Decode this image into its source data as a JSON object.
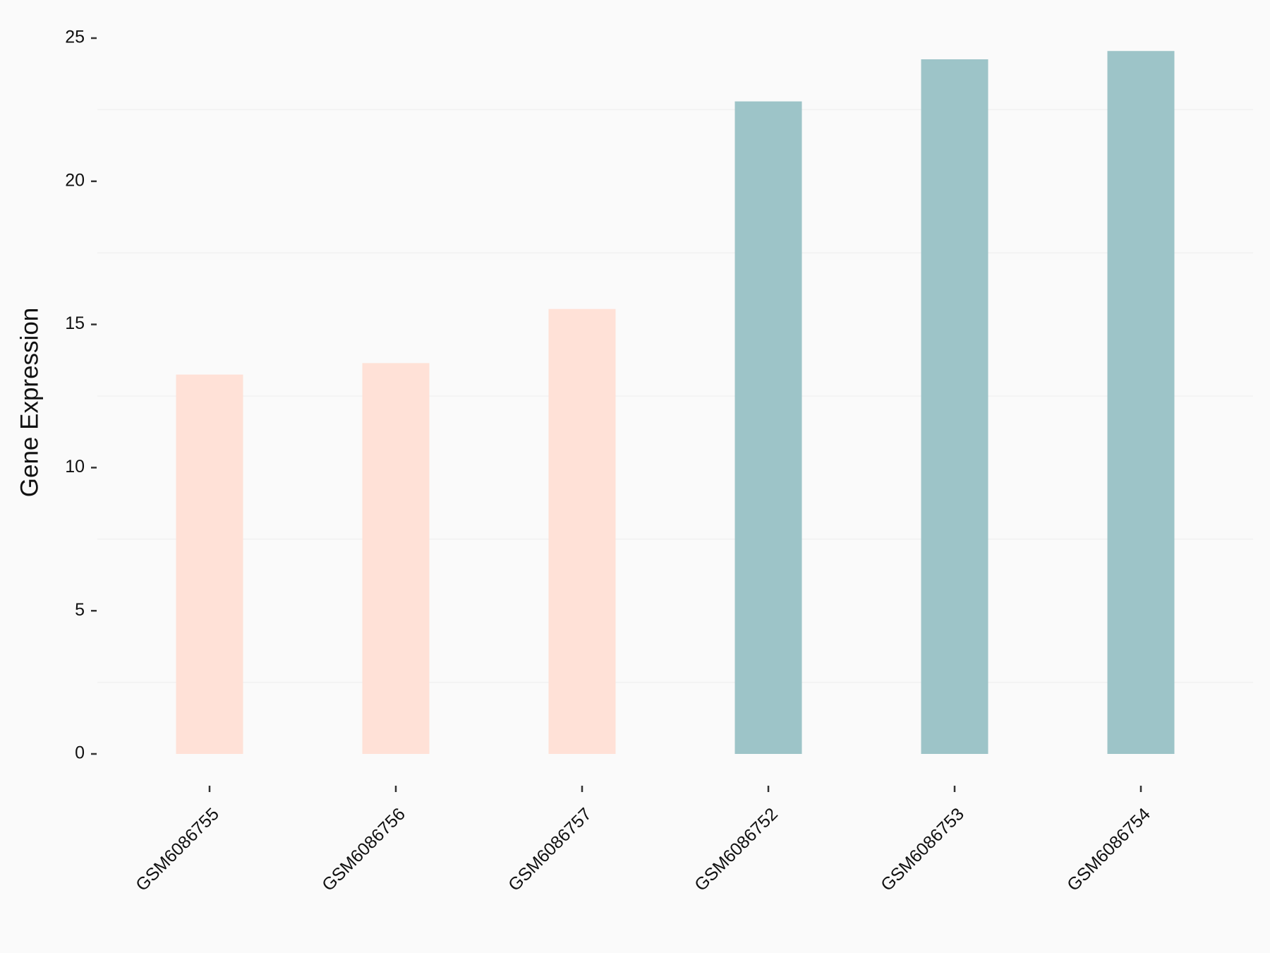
{
  "chart_data": {
    "type": "bar",
    "y_label": "Gene Expression",
    "categories": [
      "GSM6086755",
      "GSM6086756",
      "GSM6086757",
      "GSM6086752",
      "GSM6086753",
      "GSM6086754"
    ],
    "values": [
      13.25,
      13.65,
      15.54,
      22.79,
      24.26,
      24.55
    ],
    "colors": [
      "#ffe1d7",
      "#ffe1d7",
      "#ffe1d7",
      "#9dc4c8",
      "#9dc4c8",
      "#9dc4c8"
    ],
    "ylim": [
      0,
      25
    ],
    "yticks": [
      0,
      5,
      10,
      15,
      20,
      25
    ],
    "minor_grid": [
      2.5,
      7.5,
      12.5,
      17.5,
      22.5
    ],
    "grid_color": "#f1f1f1"
  }
}
